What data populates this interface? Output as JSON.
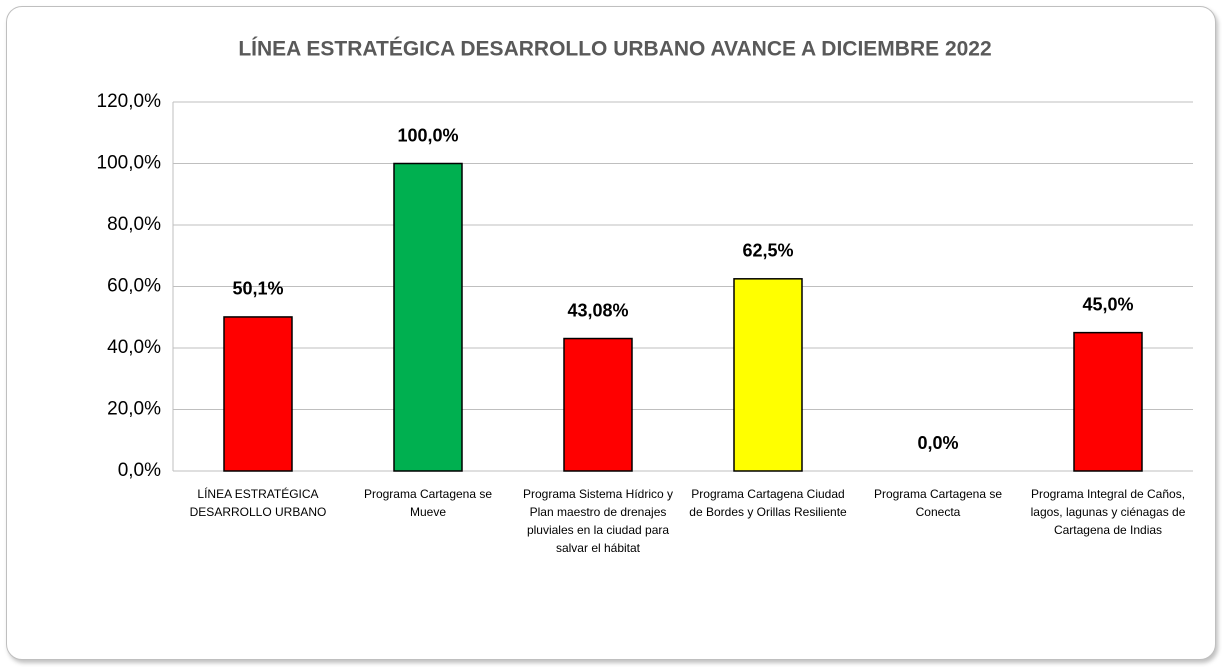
{
  "chart_data": {
    "type": "bar",
    "title": "LÍNEA ESTRATÉGICA DESARROLLO URBANO AVANCE A DICIEMBRE 2022",
    "categories": [
      "LÍNEA ESTRATÉGICA DESARROLLO URBANO",
      "Programa Cartagena se Mueve",
      "Programa Sistema Hídrico y Plan maestro de drenajes pluviales en la ciudad para salvar el hábitat",
      "Programa Cartagena Ciudad de Bordes y Orillas Resiliente",
      "Programa Cartagena se Conecta",
      "Programa Integral de Caños, lagos, lagunas y ciénagas de Cartagena de Indias"
    ],
    "values": [
      50.1,
      100,
      43.08,
      62.5,
      0,
      45
    ],
    "value_labels": [
      "50,1%",
      "100,0%",
      "43,08%",
      "62,5%",
      "0,0%",
      "45,0%"
    ],
    "colors": [
      "#ff0000",
      "#00b050",
      "#ff0000",
      "#ffff00",
      null,
      "#ff0000"
    ],
    "ylim": [
      0,
      120
    ],
    "yticks": [
      {
        "value": 0,
        "label": "0,0%"
      },
      {
        "value": 20,
        "label": "20,0%"
      },
      {
        "value": 40,
        "label": "40,0%"
      },
      {
        "value": 60,
        "label": "60,0%"
      },
      {
        "value": 80,
        "label": "80,0%"
      },
      {
        "value": 100,
        "label": "100,0%"
      },
      {
        "value": 120,
        "label": "120,0%"
      }
    ],
    "grid": true
  }
}
